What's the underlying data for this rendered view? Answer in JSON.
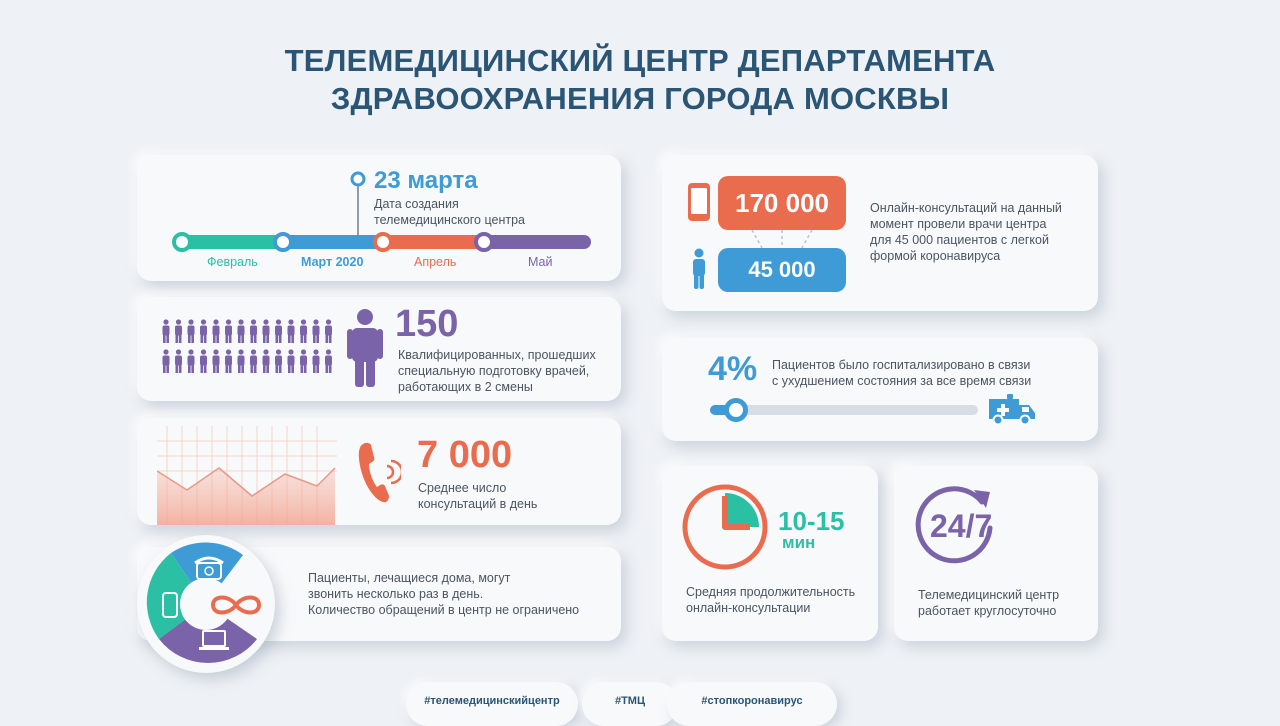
{
  "title": {
    "line1": "ТЕЛЕМЕДИЦИНСКИЙ ЦЕНТР ДЕПАРТАМЕНТА",
    "line2": "ЗДРАВООХРАНЕНИЯ ГОРОДА МОСКВЫ"
  },
  "timeline": {
    "date": "23 марта",
    "caption_line1": "Дата создания",
    "caption_line2": "телемедицинского центра",
    "months": [
      "Февраль",
      "Март 2020",
      "Апрель",
      "Май"
    ]
  },
  "doctors": {
    "value": "150",
    "text_line1": "Квалифицированных, прошедших",
    "text_line2": "специальную подготовку врачей,",
    "text_line3": "работающих в 2 смены"
  },
  "calls": {
    "value": "7 000",
    "text_line1": "Среднее число",
    "text_line2": "консультаций в день"
  },
  "channels": {
    "text_line1": "Пациенты, лечащиеся дома, могут",
    "text_line2": "звонить несколько раз в день.",
    "text_line3": "Количество обращений в центр не ограничено"
  },
  "consultations": {
    "value_consultations": "170 000",
    "value_patients": "45 000",
    "text_line1": "Онлайн-консультаций на данный",
    "text_line2": "момент провели врачи центра",
    "text_line3": "для 45 000 пациентов с легкой",
    "text_line4": "формой коронавируса"
  },
  "hospitalized": {
    "value": "4%",
    "level_fraction": 0.04,
    "text_line1": "Пациентов было госпитализировано в связи",
    "text_line2": "с ухудшением состояния за все время связи"
  },
  "duration": {
    "value": "10-15",
    "unit": "мин",
    "text_line1": "Средняя продолжительность",
    "text_line2": "онлайн-консультации"
  },
  "round_clock": {
    "value": "24/7",
    "text_line1": "Телемедицинский центр",
    "text_line2": "работает круглосуточно"
  },
  "hashtags": [
    "#телемедицинскийцентр",
    "#ТМЦ",
    "#стопкоронавирус"
  ],
  "colors": {
    "title": "#2a5574",
    "teal": "#2bbfa4",
    "blue": "#3e9bd6",
    "orange": "#ea6c4f",
    "purple": "#7a63a8",
    "gray_text": "#4a5560"
  },
  "icons": [
    "phone-icon",
    "person-icon",
    "handset-icon",
    "ambulance-icon",
    "clock-icon",
    "cycle-arrow-icon",
    "infinity-icon",
    "laptop-icon",
    "telephone-icon",
    "mobile-icon"
  ]
}
